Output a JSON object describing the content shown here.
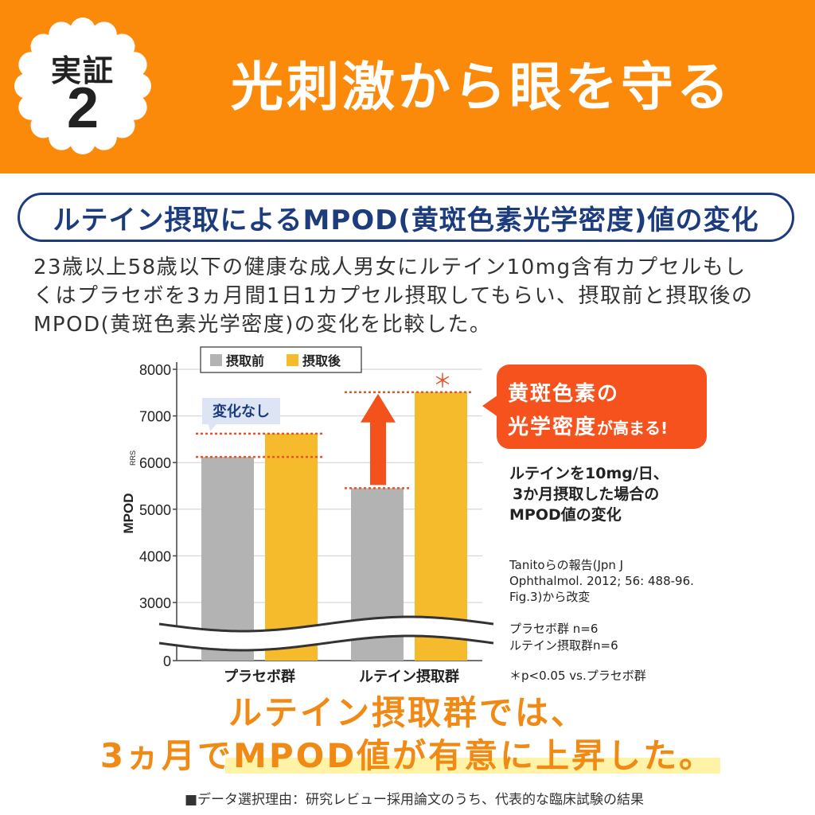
{
  "header": {
    "badge_label": "実証",
    "badge_number": "2",
    "title": "光刺激から眼を守る"
  },
  "subtitle": "ルテイン摂取によるMPOD(黄斑色素光学密度)値の変化",
  "description": [
    "23歳以上58歳以下の健康な成人男女にルテイン10mg含有カプセルもし",
    "くはプラセボを3ヵ月間1日1カプセル摂取してもらい、摂取前と摂取後の",
    "MPOD(黄斑色素光学密度)の変化を比較した。"
  ],
  "chart_data": {
    "type": "bar",
    "categories": [
      "プラセボ群",
      "ルテイン摂取群"
    ],
    "series": [
      {
        "name": "摂取前",
        "color": "#b3b3b3",
        "values": [
          6120,
          5450
        ]
      },
      {
        "name": "摂取後",
        "color": "#f6bb2c",
        "values": [
          6620,
          7510
        ]
      }
    ],
    "ylabel": "MPOD",
    "ylabel_sub": "RRS",
    "yticks": [
      0,
      3000,
      4000,
      5000,
      6000,
      7000,
      8000
    ],
    "ylim": [
      2700,
      8000
    ],
    "axis_break": true,
    "annotations": {
      "no_change": "変化なし",
      "significance_mark": "＊"
    }
  },
  "callout": {
    "line1": "黄斑色素の",
    "line2_big": "光学密度",
    "line2_small": "が高まる!"
  },
  "side_notes": {
    "summary": [
      "ルテインを10mg/日、",
      "3か月摂取した場合の",
      "MPOD値の変化"
    ],
    "reference": [
      "Tanitoらの報告(Jpn J",
      "Ophthalmol. 2012; 56: 488-96.",
      "Fig.3)から改変"
    ],
    "n_values": [
      "プラセボ群 n=6",
      "ルテイン摂取群n=6"
    ],
    "p_value": "＊p<0.05 vs.プラセボ群"
  },
  "conclusion": {
    "line1": "ルテイン摂取群では、",
    "line2": "3ヵ月でMPOD値が有意に上昇した。"
  },
  "footnote": "■データ選択理由：研究レビュー採用論文のうち、代表的な臨床試験の結果",
  "colors": {
    "header_orange": "#fb8a0a",
    "subtitle_navy": "#1c3c7e",
    "callout_red": "#f5521e",
    "arrow_red": "#f4521c",
    "conclusion_orange": "#f08a14",
    "dotted_line": "#e8532a"
  }
}
